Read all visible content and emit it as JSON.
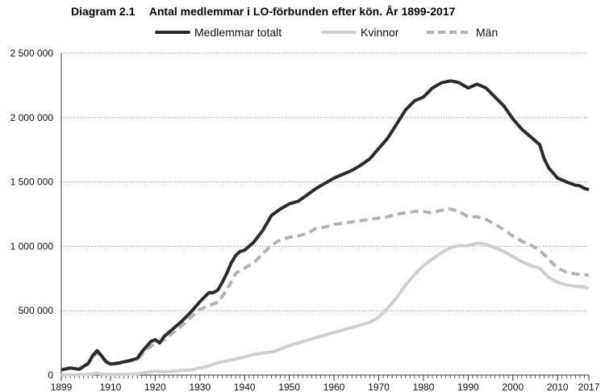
{
  "chart_data": {
    "type": "line",
    "title_number": "Diagram 2.1",
    "title": "Antal medlemmar i LO-förbunden efter kön. År 1899-2017",
    "xlabel": "",
    "ylabel": "",
    "xlim": [
      1899,
      2017
    ],
    "ylim": [
      0,
      2500000
    ],
    "y_ticks": [
      0,
      500000,
      1000000,
      1500000,
      2000000,
      2500000
    ],
    "y_tick_labels": [
      "0",
      "500 000",
      "1 000 000",
      "1 500 000",
      "2 000 000",
      "2 500 000"
    ],
    "x_ticks": [
      1899,
      1910,
      1920,
      1930,
      1940,
      1950,
      1960,
      1970,
      1980,
      1990,
      2000,
      2010,
      2017
    ],
    "x_tick_labels": [
      "1899",
      "1910",
      "1920",
      "1930",
      "1940",
      "1950",
      "1960",
      "1970",
      "1980",
      "1990",
      "2000",
      "2010",
      "2017"
    ],
    "grid": "horizontal-dotted",
    "legend_position": "top",
    "series": [
      {
        "name": "Medlemmar totalt",
        "color": "#2b2b2b",
        "style": "solid",
        "x": [
          1899,
          1901,
          1903,
          1905,
          1906,
          1907,
          1908,
          1909,
          1910,
          1912,
          1914,
          1916,
          1917,
          1918,
          1919,
          1920,
          1921,
          1922,
          1924,
          1926,
          1928,
          1930,
          1932,
          1933,
          1934,
          1935,
          1936,
          1937,
          1938,
          1939,
          1940,
          1942,
          1944,
          1946,
          1948,
          1950,
          1952,
          1954,
          1956,
          1958,
          1960,
          1962,
          1964,
          1966,
          1968,
          1970,
          1972,
          1974,
          1976,
          1978,
          1980,
          1982,
          1984,
          1986,
          1987,
          1988,
          1990,
          1992,
          1994,
          1996,
          1998,
          2000,
          2002,
          2004,
          2006,
          2007,
          2008,
          2010,
          2012,
          2014,
          2015,
          2016,
          2017
        ],
        "values": [
          40000,
          55000,
          45000,
          90000,
          150000,
          190000,
          150000,
          105000,
          85000,
          95000,
          110000,
          130000,
          180000,
          220000,
          260000,
          275000,
          250000,
          300000,
          360000,
          420000,
          490000,
          570000,
          640000,
          640000,
          660000,
          720000,
          790000,
          870000,
          930000,
          960000,
          970000,
          1030000,
          1120000,
          1240000,
          1290000,
          1330000,
          1350000,
          1400000,
          1450000,
          1490000,
          1530000,
          1560000,
          1590000,
          1630000,
          1680000,
          1760000,
          1840000,
          1950000,
          2060000,
          2130000,
          2160000,
          2230000,
          2270000,
          2285000,
          2280000,
          2270000,
          2230000,
          2260000,
          2230000,
          2160000,
          2090000,
          1990000,
          1910000,
          1850000,
          1790000,
          1680000,
          1610000,
          1530000,
          1500000,
          1475000,
          1470000,
          1450000,
          1440000
        ]
      },
      {
        "name": "Kvinnor",
        "color": "#cfcfcf",
        "style": "solid",
        "x": [
          1899,
          1905,
          1907,
          1909,
          1912,
          1916,
          1918,
          1920,
          1922,
          1924,
          1926,
          1928,
          1930,
          1932,
          1934,
          1936,
          1938,
          1940,
          1942,
          1944,
          1946,
          1948,
          1950,
          1952,
          1954,
          1956,
          1958,
          1960,
          1962,
          1964,
          1966,
          1968,
          1970,
          1972,
          1974,
          1976,
          1978,
          1980,
          1982,
          1984,
          1986,
          1988,
          1990,
          1992,
          1994,
          1996,
          1998,
          2000,
          2002,
          2004,
          2006,
          2008,
          2010,
          2012,
          2014,
          2016,
          2017
        ],
        "values": [
          0,
          5000,
          15000,
          5000,
          5000,
          10000,
          20000,
          30000,
          25000,
          30000,
          35000,
          40000,
          55000,
          70000,
          95000,
          110000,
          125000,
          140000,
          160000,
          170000,
          180000,
          200000,
          230000,
          250000,
          270000,
          290000,
          310000,
          330000,
          350000,
          370000,
          390000,
          410000,
          450000,
          520000,
          600000,
          700000,
          780000,
          850000,
          900000,
          950000,
          990000,
          1005000,
          1005000,
          1025000,
          1015000,
          990000,
          960000,
          920000,
          880000,
          850000,
          830000,
          760000,
          720000,
          700000,
          690000,
          685000,
          670000
        ]
      },
      {
        "name": "Män",
        "color": "#b3b3b3",
        "style": "dashed",
        "x": [
          1899,
          1901,
          1903,
          1905,
          1906,
          1907,
          1908,
          1909,
          1910,
          1912,
          1914,
          1916,
          1918,
          1920,
          1922,
          1924,
          1926,
          1928,
          1930,
          1932,
          1934,
          1936,
          1938,
          1940,
          1942,
          1944,
          1946,
          1948,
          1950,
          1952,
          1954,
          1956,
          1958,
          1960,
          1962,
          1964,
          1966,
          1968,
          1970,
          1972,
          1974,
          1976,
          1978,
          1980,
          1982,
          1984,
          1986,
          1988,
          1990,
          1992,
          1994,
          1996,
          1998,
          2000,
          2002,
          2004,
          2006,
          2008,
          2010,
          2012,
          2014,
          2016,
          2017
        ],
        "values": [
          40000,
          55000,
          45000,
          85000,
          140000,
          175000,
          140000,
          100000,
          80000,
          90000,
          105000,
          120000,
          200000,
          245000,
          275000,
          330000,
          385000,
          450000,
          510000,
          540000,
          565000,
          660000,
          790000,
          830000,
          870000,
          940000,
          1010000,
          1050000,
          1070000,
          1080000,
          1100000,
          1140000,
          1150000,
          1170000,
          1180000,
          1190000,
          1200000,
          1210000,
          1220000,
          1230000,
          1250000,
          1260000,
          1270000,
          1270000,
          1260000,
          1280000,
          1290000,
          1270000,
          1230000,
          1230000,
          1210000,
          1170000,
          1130000,
          1080000,
          1040000,
          1010000,
          970000,
          900000,
          830000,
          800000,
          785000,
          780000,
          775000
        ]
      }
    ]
  }
}
